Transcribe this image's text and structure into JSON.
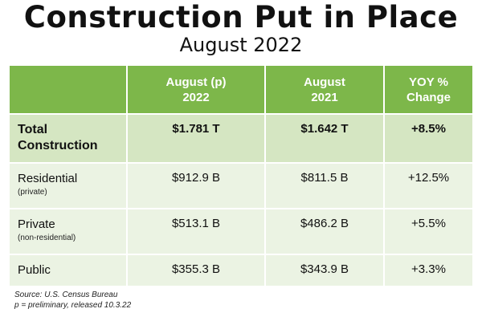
{
  "title": "Construction Put in Place",
  "subtitle": "August 2022",
  "table": {
    "headers": [
      "",
      "August (p)\n2022",
      "August\n2021",
      "YOY %\nChange"
    ],
    "rows": [
      {
        "label": "Total\nConstruction",
        "note": "",
        "values": [
          "$1.781 T",
          "$1.642 T",
          "+8.5%"
        ]
      },
      {
        "label": "Residential",
        "note": "(private)",
        "values": [
          "$912.9 B",
          "$811.5 B",
          "+12.5%"
        ]
      },
      {
        "label": "Private",
        "note": "(non-residential)",
        "values": [
          "$513.1 B",
          "$486.2 B",
          "+5.5%"
        ]
      },
      {
        "label": "Public",
        "note": "",
        "values": [
          "$355.3 B",
          "$343.9 B",
          "+3.3%"
        ]
      }
    ]
  },
  "footer": {
    "source": "Source: U.S. Census Bureau",
    "note": "p = preliminary, released 10.3.22"
  },
  "colors": {
    "header_green": "#7db74a",
    "total_row": "#d5e6c2",
    "body_rows": "#ebf3e3"
  }
}
